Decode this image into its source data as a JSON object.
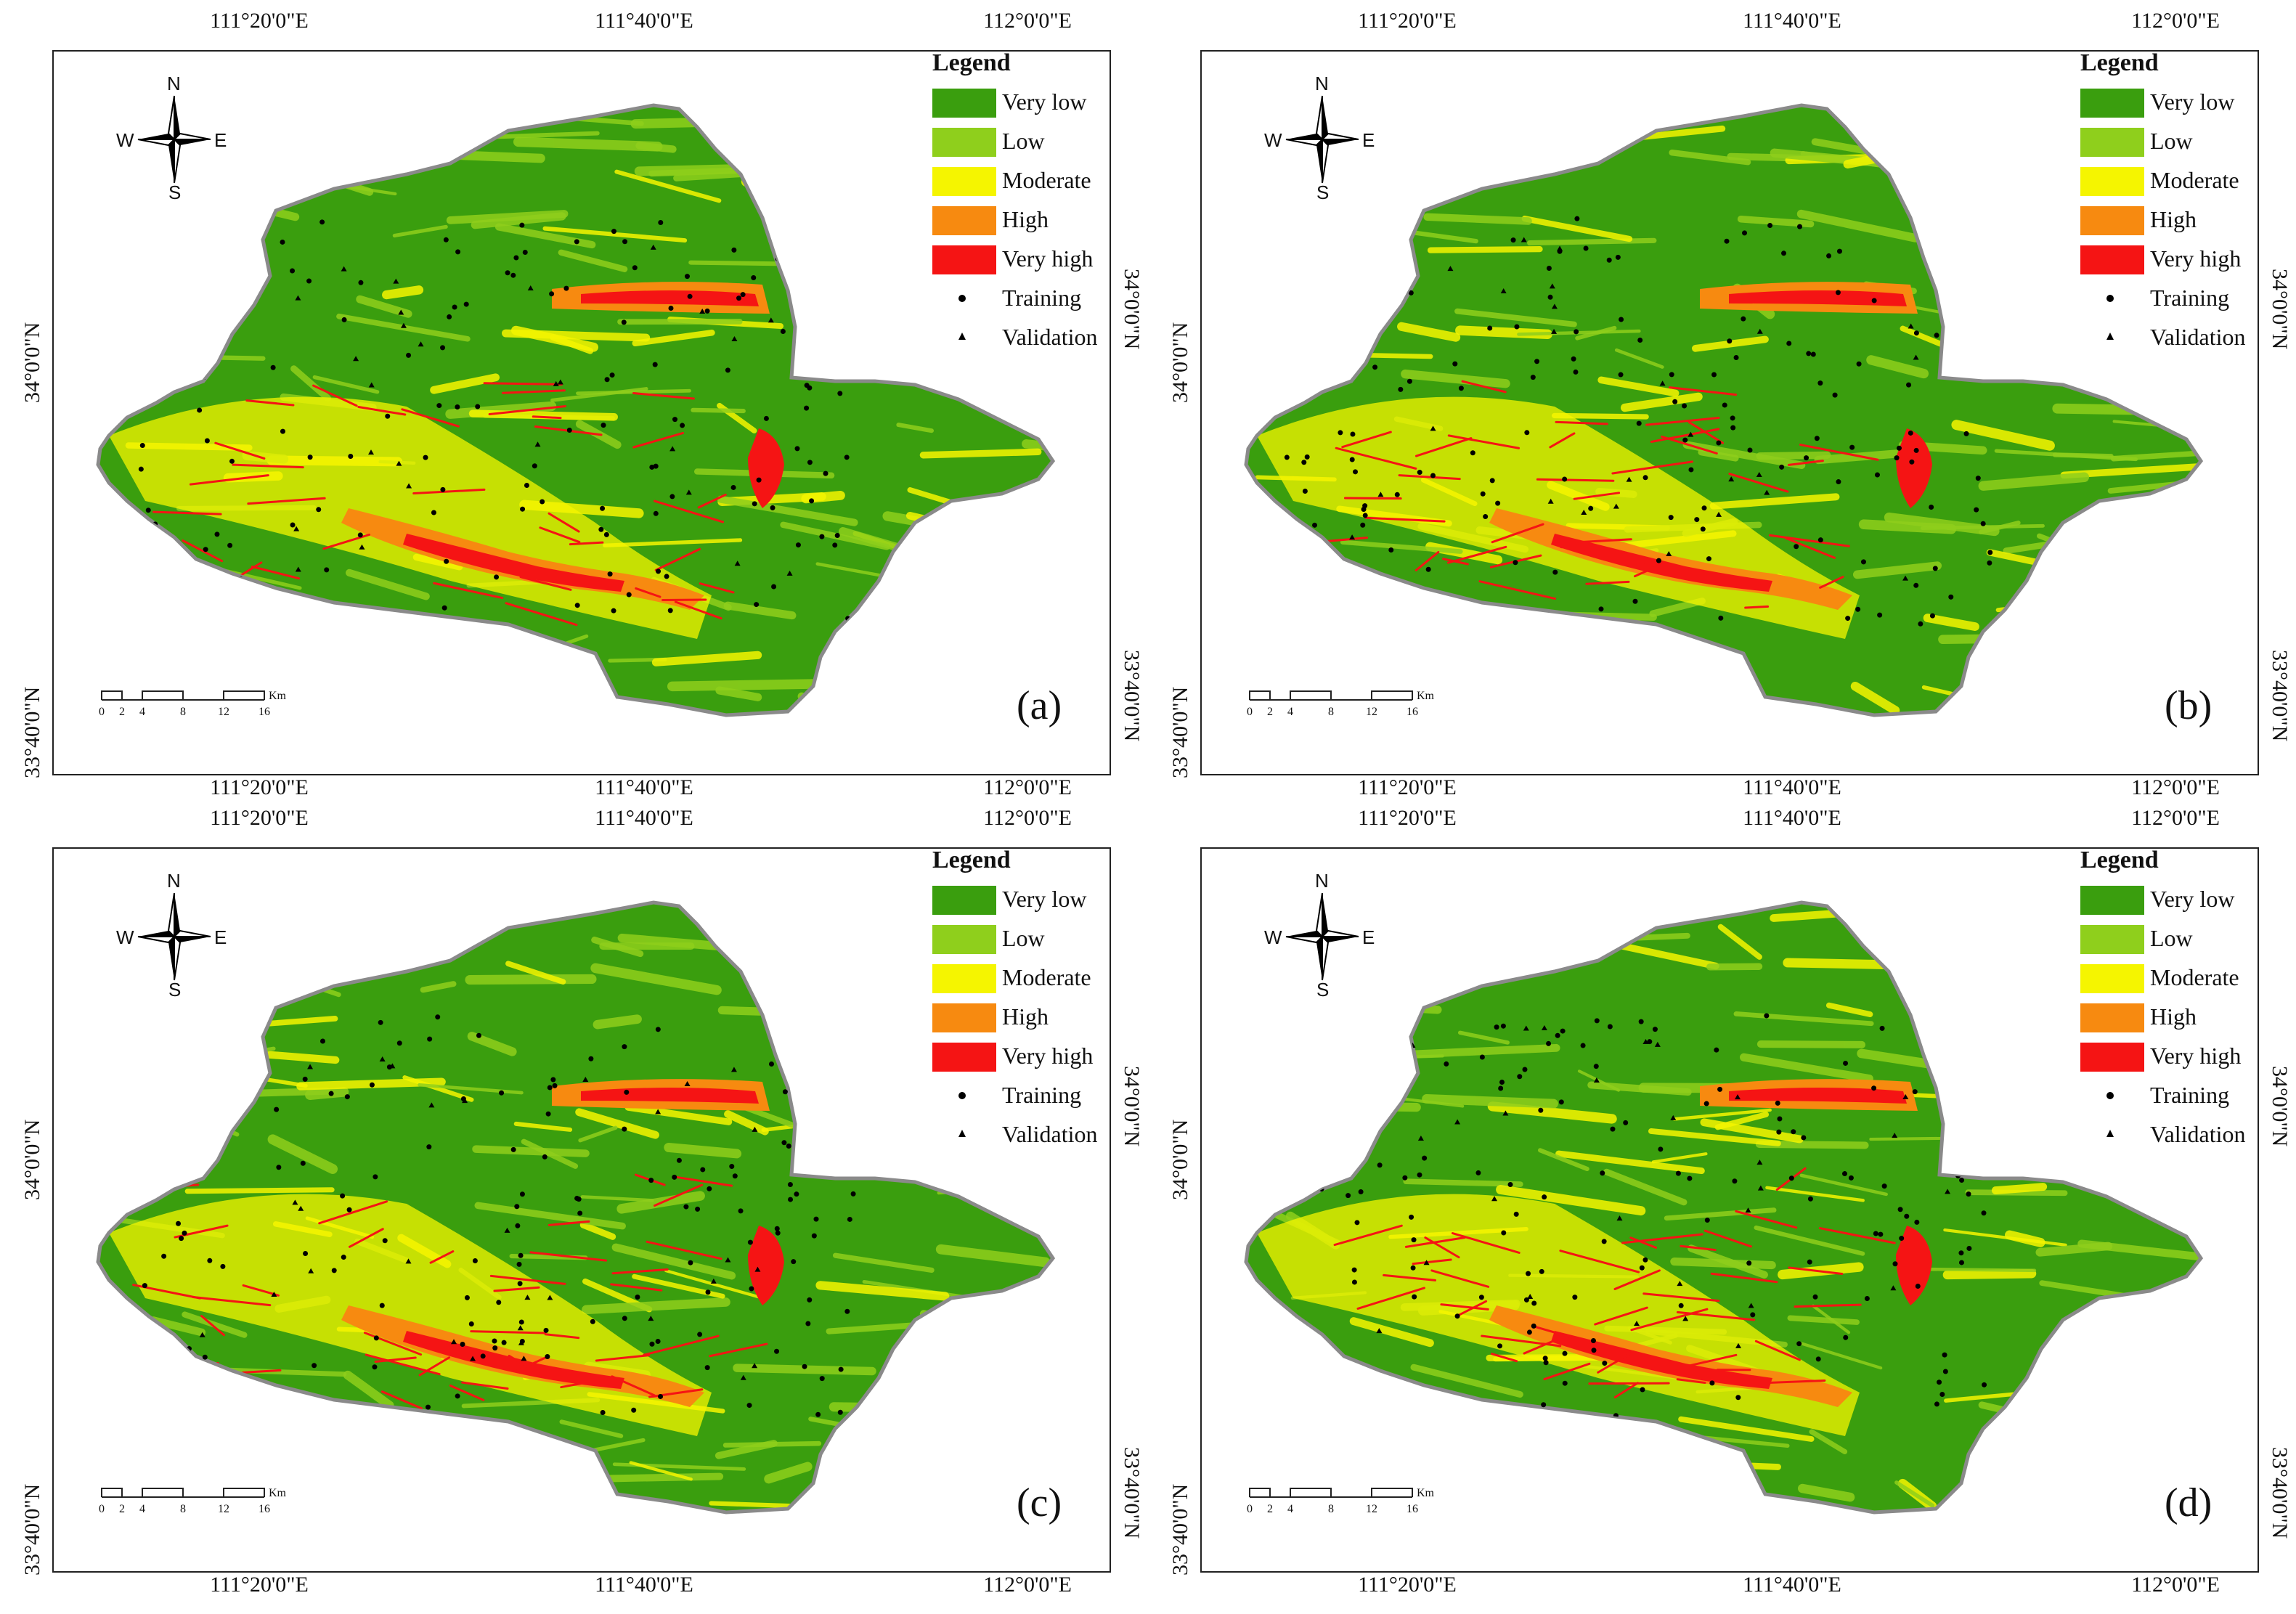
{
  "axis_labels": {
    "top": [
      "111°20'0\"E",
      "111°40'0\"E",
      "112°0'0\"E"
    ],
    "bottom": [
      "111°20'0\"E",
      "111°40'0\"E",
      "112°0'0\"E"
    ],
    "left": [
      "34°0'0\"N",
      "33°40'0\"N"
    ],
    "right": [
      "34°0'0\"N",
      "33°40'0\"N"
    ]
  },
  "legend": {
    "title": "Legend",
    "classes": [
      {
        "label": "Very low",
        "color": "#3a9e0e"
      },
      {
        "label": "Low",
        "color": "#8fcf1c"
      },
      {
        "label": "Moderate",
        "color": "#f5f500"
      },
      {
        "label": "High",
        "color": "#f78a10"
      },
      {
        "label": "Very high",
        "color": "#f51414"
      }
    ],
    "points": [
      {
        "label": "Training",
        "marker": "dot"
      },
      {
        "label": "Validation",
        "marker": "triangle"
      }
    ]
  },
  "compass": {
    "n": "N",
    "s": "S",
    "e": "E",
    "w": "W"
  },
  "scale_bar": {
    "ticks": [
      "0",
      "2",
      "4",
      "8",
      "12",
      "16"
    ],
    "unit": "Km"
  },
  "panels": [
    {
      "letter": "(a)"
    },
    {
      "letter": "(b)"
    },
    {
      "letter": "(c)"
    },
    {
      "letter": "(d)"
    }
  ]
}
